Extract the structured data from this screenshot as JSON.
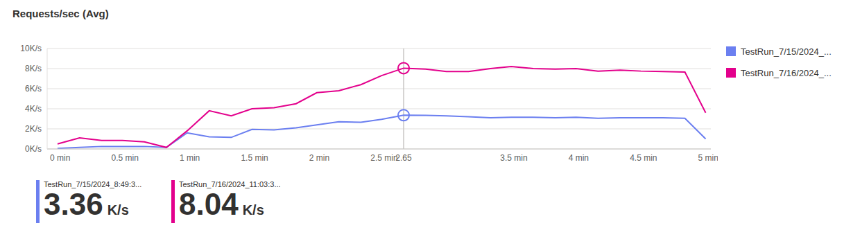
{
  "chart_data": {
    "type": "line",
    "title": "Requests/sec (Avg)",
    "x": [
      -0.02,
      0.15,
      0.32,
      0.48,
      0.65,
      0.82,
      0.98,
      1.15,
      1.32,
      1.48,
      1.65,
      1.82,
      1.98,
      2.15,
      2.32,
      2.48,
      2.65,
      2.82,
      2.98,
      3.15,
      3.32,
      3.48,
      3.65,
      3.82,
      3.98,
      4.15,
      4.32,
      4.48,
      4.65,
      4.82,
      4.98
    ],
    "xlim": [
      -0.1,
      5.02
    ],
    "xticks": [
      {
        "value": 0,
        "label": "0 min"
      },
      {
        "value": 0.5,
        "label": "0.5 min"
      },
      {
        "value": 1,
        "label": "1 min"
      },
      {
        "value": 1.5,
        "label": "1.5 min"
      },
      {
        "value": 2,
        "label": "2 min"
      },
      {
        "value": 2.5,
        "label": "2.5 min"
      },
      {
        "value": 2.65,
        "label": "2.65"
      },
      {
        "value": 3.5,
        "label": "3.5 min"
      },
      {
        "value": 4,
        "label": "4 min"
      },
      {
        "value": 4.5,
        "label": "4.5 min"
      },
      {
        "value": 5,
        "label": "5 min"
      }
    ],
    "ylim": [
      0,
      10
    ],
    "yticks": [
      {
        "value": 0,
        "label": "0K/s"
      },
      {
        "value": 2,
        "label": "2K/s"
      },
      {
        "value": 4,
        "label": "4K/s"
      },
      {
        "value": 6,
        "label": "6K/s"
      },
      {
        "value": 8,
        "label": "8K/s"
      },
      {
        "value": 10,
        "label": "10K/s"
      }
    ],
    "grid": true,
    "legend": "right",
    "series": [
      {
        "name": "TestRun_7/15/2024_...",
        "color": "#6b7ff0",
        "values": [
          0.05,
          0.15,
          0.25,
          0.25,
          0.25,
          0.15,
          1.6,
          1.2,
          1.15,
          1.95,
          1.9,
          2.1,
          2.4,
          2.7,
          2.65,
          2.95,
          3.36,
          3.35,
          3.3,
          3.2,
          3.1,
          3.15,
          3.15,
          3.1,
          3.15,
          3.05,
          3.1,
          3.1,
          3.1,
          3.05,
          1.0
        ]
      },
      {
        "name": "TestRun_7/16/2024_...",
        "color": "#e3008c",
        "values": [
          0.5,
          1.1,
          0.85,
          0.85,
          0.7,
          0.15,
          1.8,
          3.8,
          3.3,
          4.0,
          4.1,
          4.5,
          5.6,
          5.8,
          6.4,
          7.3,
          8.04,
          7.95,
          7.7,
          7.7,
          8.0,
          8.2,
          8.0,
          7.95,
          8.0,
          7.75,
          7.85,
          7.75,
          7.7,
          7.65,
          3.6
        ]
      }
    ],
    "cursor": {
      "x": 2.65
    },
    "summary": [
      {
        "label": "TestRun_7/15/2024_8:49:3...",
        "value": 3.36,
        "unit": "K/s"
      },
      {
        "label": "TestRun_7/16/2024_11:03:3...",
        "value": 8.04,
        "unit": "K/s"
      }
    ]
  }
}
